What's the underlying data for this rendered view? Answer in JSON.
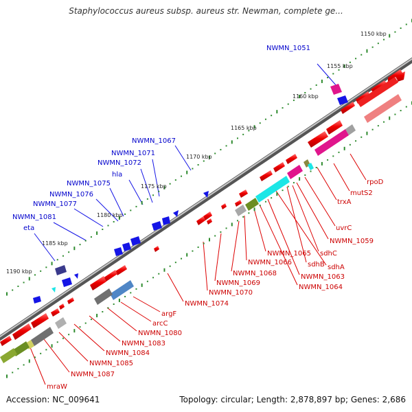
{
  "title": "Staphylococcus aureus subsp. aureus str. Newman, complete ge...",
  "footer": {
    "accession": "Accession: NC_009641",
    "info": "Topology: circular; Length: 2,878,897 bp; Genes: 2,686"
  },
  "colors": {
    "backbone": "#8c8c8c",
    "tick": "#2e8b2e",
    "forward_label": "#0000cc",
    "reverse_label": "#cc0000",
    "forward_gene": "#1515e6",
    "reverse_gene": "#ee0000",
    "pink": "#e0158c",
    "cyan": "#1ce6e6",
    "olive": "#6b8e23",
    "gray": "#808080",
    "navy": "#3a3a8c",
    "steel": "#4f86c6",
    "salmon": "#ef8080"
  },
  "kbp_markers": [
    "1150 kbp",
    "1155 kbp",
    "1160 kbp",
    "1165 kbp",
    "1170 kbp",
    "1175 kbp",
    "1180 kbp",
    "1185 kbp",
    "1190 kbp"
  ],
  "forward_labels": [
    "NWMN_1051",
    "NWMN_1067",
    "NWMN_1071",
    "NWMN_1072",
    "hla",
    "NWMN_1075",
    "NWMN_1076",
    "NWMN_1077",
    "NWMN_1081",
    "eta"
  ],
  "reverse_labels": [
    "rpoD",
    "mutS2",
    "trxA",
    "uvrC",
    "NWMN_1059",
    "sdhC",
    "sdhA",
    "sdhB",
    "NWMN_1063",
    "NWMN_1064",
    "NWMN_1065",
    "NWMN_1066",
    "NWMN_1068",
    "NWMN_1069",
    "NWMN_1070",
    "NWMN_1074",
    "argF",
    "arcC",
    "NWMN_1080",
    "NWMN_1083",
    "NWMN_1084",
    "NWMN_1085",
    "NWMN_1087",
    "mraW"
  ]
}
